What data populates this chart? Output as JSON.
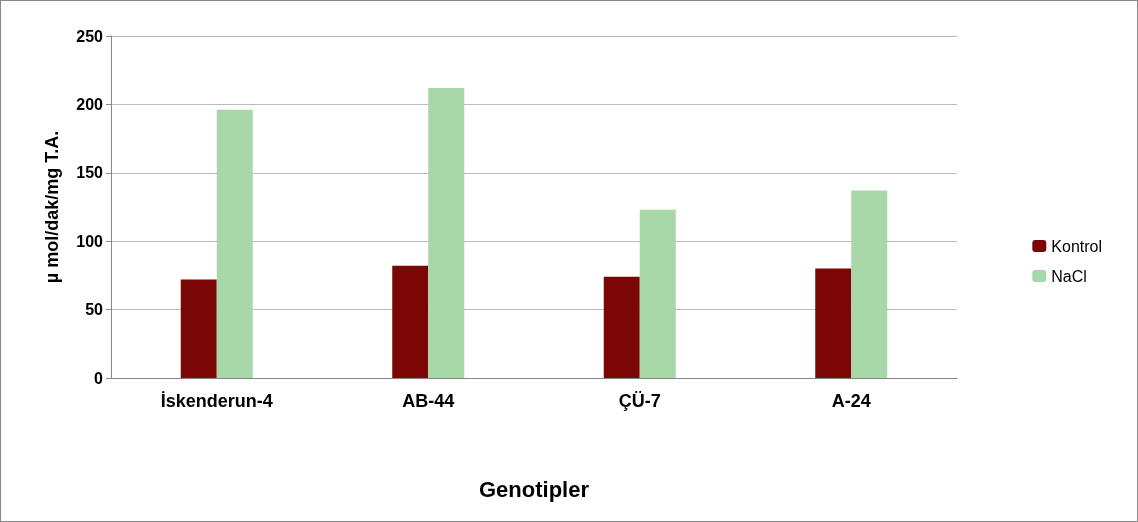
{
  "chart_data": {
    "type": "bar",
    "xlabel": "Genotipler",
    "ylabel": "µ mol/dak/mg T.A.",
    "categories": [
      "İskenderun-4",
      "AB-44",
      "ÇÜ-7",
      "A-24"
    ],
    "series": [
      {
        "name": "Kontrol",
        "color": "#7a0606",
        "values": [
          72,
          82,
          74,
          80
        ]
      },
      {
        "name": "NaCl",
        "color": "#a8d8a8",
        "values": [
          196,
          212,
          123,
          137
        ]
      }
    ],
    "ylim": [
      0,
      250
    ],
    "yticks": [
      0,
      50,
      100,
      150,
      200,
      250
    ],
    "grid": "y",
    "legend": "right"
  }
}
